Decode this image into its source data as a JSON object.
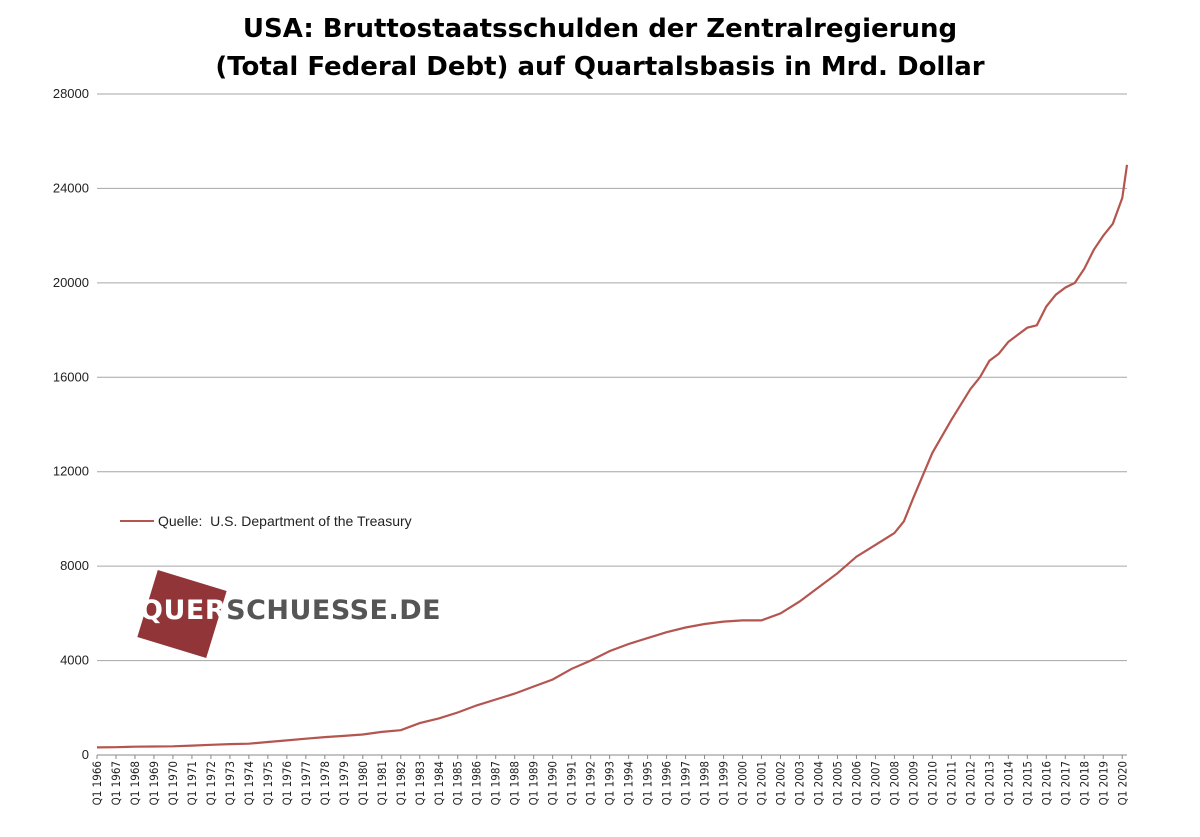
{
  "title": {
    "line1": "USA: Bruttostaatsschulden der Zentralregierung",
    "line2": "(Total Federal Debt) auf Quartalsbasis in Mrd. Dollar"
  },
  "legend": {
    "label": "Quelle:  U.S. Department of the Treasury"
  },
  "watermark": {
    "part1": "QUER",
    "part2": "SCHUESSE.DE"
  },
  "colors": {
    "line": "#b5554f",
    "grid": "#a6a6a6",
    "watermark": "#8b2a2e"
  },
  "chart_data": {
    "type": "line",
    "title": "USA: Bruttostaatsschulden der Zentralregierung (Total Federal Debt) auf Quartalsbasis in Mrd. Dollar",
    "xlabel": "",
    "ylabel": "",
    "ylim": [
      0,
      28000
    ],
    "yticks": [
      0,
      4000,
      8000,
      12000,
      16000,
      20000,
      24000,
      28000
    ],
    "grid": true,
    "legend_position": "left",
    "xticks": [
      "Q1 1966",
      "Q1 1967",
      "Q1 1968",
      "Q1 1969",
      "Q1 1970",
      "Q1 1971",
      "Q1 1972",
      "Q1 1973",
      "Q1 1974",
      "Q1 1975",
      "Q1 1976",
      "Q1 1977",
      "Q1 1978",
      "Q1 1979",
      "Q1 1980",
      "Q1 1981",
      "Q1 1982",
      "Q1 1983",
      "Q1 1984",
      "Q1 1985",
      "Q1 1986",
      "Q1 1987",
      "Q1 1988",
      "Q1 1989",
      "Q1 1990",
      "Q1 1991",
      "Q1 1992",
      "Q1 1993",
      "Q1 1994",
      "Q1 1995",
      "Q1 1996",
      "Q1 1997",
      "Q1 1998",
      "Q1 1999",
      "Q1 2000",
      "Q1 2001",
      "Q1 2002",
      "Q1 2003",
      "Q1 2004",
      "Q1 2005",
      "Q1 2006",
      "Q1 2007",
      "Q1 2008",
      "Q1 2009",
      "Q1 2010",
      "Q1 2011",
      "Q1 2012",
      "Q1 2013",
      "Q1 2014",
      "Q1 2015",
      "Q1 2016",
      "Q1 2017",
      "Q1 2018",
      "Q1 2019",
      "Q1 2020"
    ],
    "series": [
      {
        "name": "Quelle:  U.S. Department of the Treasury",
        "x": [
          1966,
          1967,
          1968,
          1969,
          1970,
          1971,
          1972,
          1973,
          1974,
          1975,
          1976,
          1977,
          1978,
          1979,
          1980,
          1981,
          1982,
          1983,
          1984,
          1985,
          1986,
          1987,
          1988,
          1989,
          1990,
          1991,
          1992,
          1993,
          1994,
          1995,
          1996,
          1997,
          1998,
          1999,
          2000,
          2001,
          2002,
          2003,
          2004,
          2005,
          2006,
          2007,
          2008,
          2008.5,
          2009,
          2010,
          2011,
          2012,
          2012.5,
          2013,
          2013.5,
          2014,
          2014.5,
          2015,
          2015.5,
          2016,
          2016.5,
          2017,
          2017.5,
          2018,
          2018.5,
          2019,
          2019.5,
          2020,
          2020.25
        ],
        "values": [
          320,
          330,
          350,
          360,
          370,
          400,
          430,
          460,
          480,
          550,
          620,
          690,
          760,
          810,
          870,
          980,
          1050,
          1350,
          1550,
          1800,
          2100,
          2350,
          2600,
          2900,
          3200,
          3650,
          4000,
          4400,
          4700,
          4950,
          5200,
          5400,
          5550,
          5650,
          5700,
          5700,
          6000,
          6500,
          7100,
          7700,
          8400,
          8900,
          9400,
          9900,
          10900,
          12800,
          14200,
          15500,
          16000,
          16700,
          17000,
          17500,
          17800,
          18100,
          18200,
          19000,
          19500,
          19800,
          20000,
          20600,
          21400,
          22000,
          22500,
          23600,
          25000
        ]
      }
    ]
  }
}
